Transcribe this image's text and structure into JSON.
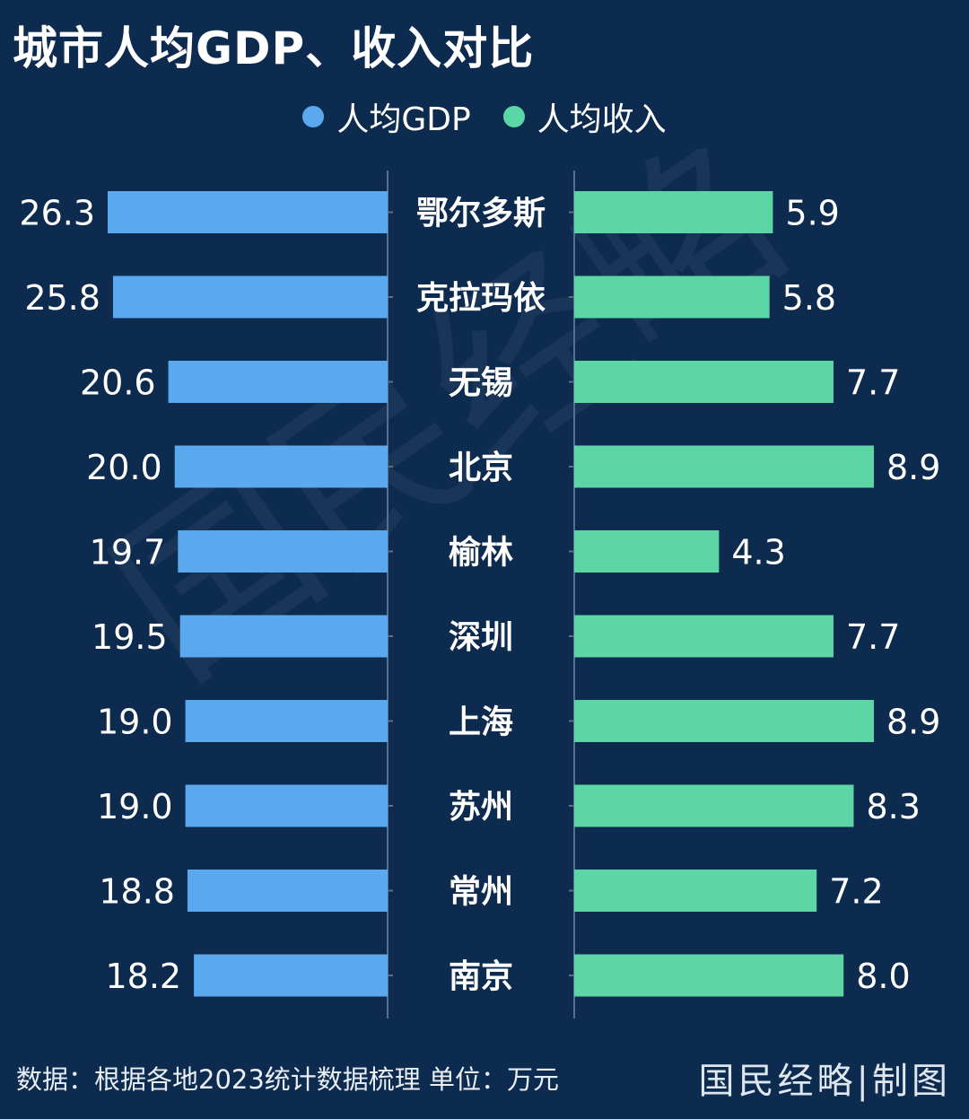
{
  "title": "城市人均GDP、收入对比",
  "legend": {
    "gdp_label": "人均GDP",
    "income_label": "人均收入"
  },
  "colors": {
    "background": "#0d2b4f",
    "gdp": "#5aa9ef",
    "income": "#5dd6a6"
  },
  "chart_data": {
    "type": "bar",
    "orientation": "horizontal-butterfly",
    "categories": [
      "鄂尔多斯",
      "克拉玛依",
      "无锡",
      "北京",
      "榆林",
      "深圳",
      "上海",
      "苏州",
      "常州",
      "南京"
    ],
    "series": [
      {
        "name": "人均GDP",
        "values": [
          26.3,
          25.8,
          20.6,
          20.0,
          19.7,
          19.5,
          19.0,
          19.0,
          18.8,
          18.2
        ]
      },
      {
        "name": "人均收入",
        "values": [
          5.9,
          5.8,
          7.7,
          8.9,
          4.3,
          7.7,
          8.9,
          8.3,
          7.2,
          8.0
        ]
      }
    ],
    "legend_position": "top"
  },
  "footer": {
    "note": "数据：根据各地2023统计数据梳理 单位：万元",
    "brand": "国民经略|制图"
  },
  "watermark": "国民经略"
}
